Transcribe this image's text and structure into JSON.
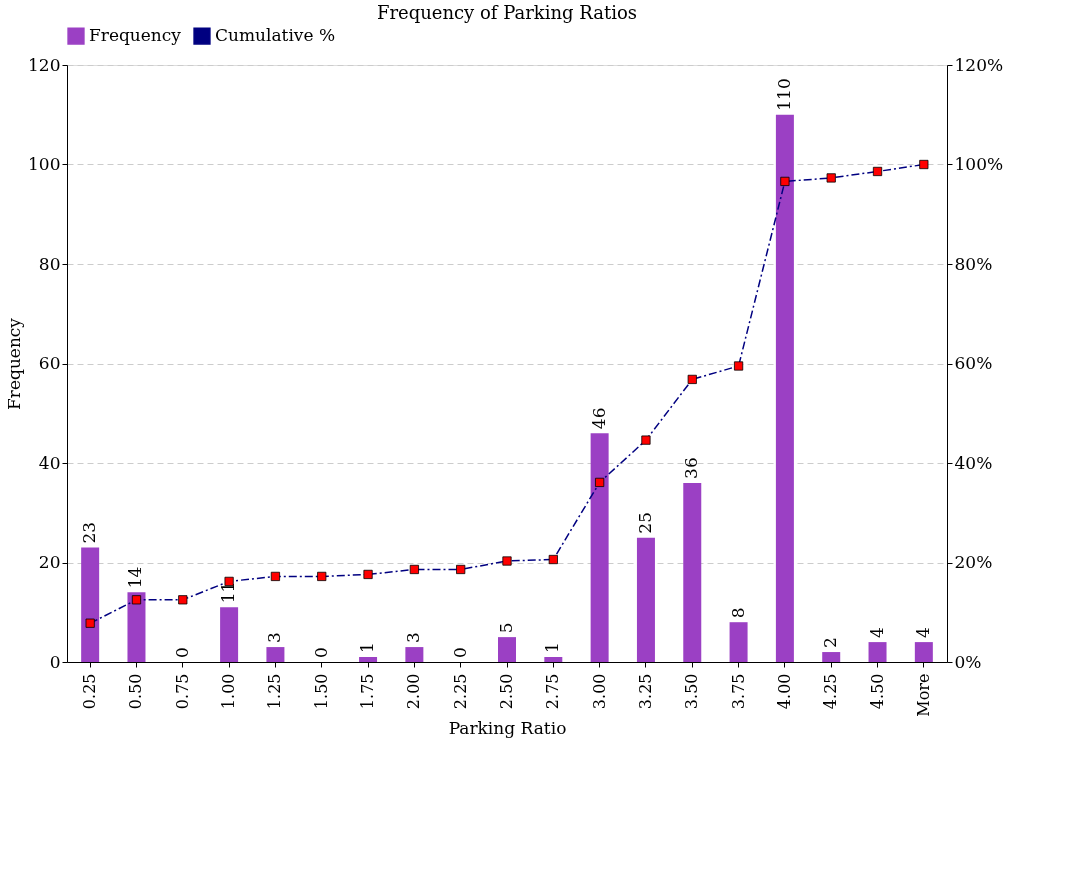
{
  "chart_data": {
    "type": "bar",
    "title": "Frequency of Parking Ratios",
    "xlabel": "Parking Ratio",
    "ylabel": "Frequency",
    "categories": [
      "0.25",
      "0.50",
      "0.75",
      "1.00",
      "1.25",
      "1.50",
      "1.75",
      "2.00",
      "2.25",
      "2.50",
      "2.75",
      "3.00",
      "3.25",
      "3.50",
      "3.75",
      "4.00",
      "4.25",
      "4.50",
      "More"
    ],
    "series": [
      {
        "name": "Frequency",
        "color": "#9b40c4",
        "values": [
          23,
          14,
          0,
          11,
          3,
          0,
          1,
          3,
          0,
          5,
          1,
          46,
          25,
          36,
          8,
          110,
          2,
          4,
          4
        ],
        "value_labels": [
          "23",
          "14",
          "0",
          "11",
          "3",
          "0",
          "1",
          "3",
          "0",
          "5",
          "1",
          "46",
          "25",
          "36",
          "8",
          "110",
          "2",
          "4",
          "4"
        ]
      },
      {
        "name": "Cumulative %",
        "type": "line",
        "axis": "y2",
        "color": "#000080",
        "marker": "square",
        "line_style": "dashdot",
        "values": [
          7.8,
          12.5,
          12.5,
          16.2,
          17.2,
          17.2,
          17.6,
          18.6,
          18.6,
          20.3,
          20.6,
          36.1,
          44.6,
          56.8,
          59.5,
          96.6,
          97.3,
          98.6,
          100
        ]
      }
    ],
    "ylim": [
      0,
      120
    ],
    "yticks": [
      0,
      20,
      40,
      60,
      80,
      100,
      120
    ],
    "y2lim": [
      0,
      120
    ],
    "y2ticks": [
      {
        "value": 0,
        "label": "0%"
      },
      {
        "value": 20,
        "label": "20%"
      },
      {
        "value": 40,
        "label": "40%"
      },
      {
        "value": 60,
        "label": "60%"
      },
      {
        "value": 80,
        "label": "80%"
      },
      {
        "value": 100,
        "label": "100%"
      },
      {
        "value": 120,
        "label": "120%"
      }
    ],
    "grid": "y",
    "legend": "top"
  }
}
